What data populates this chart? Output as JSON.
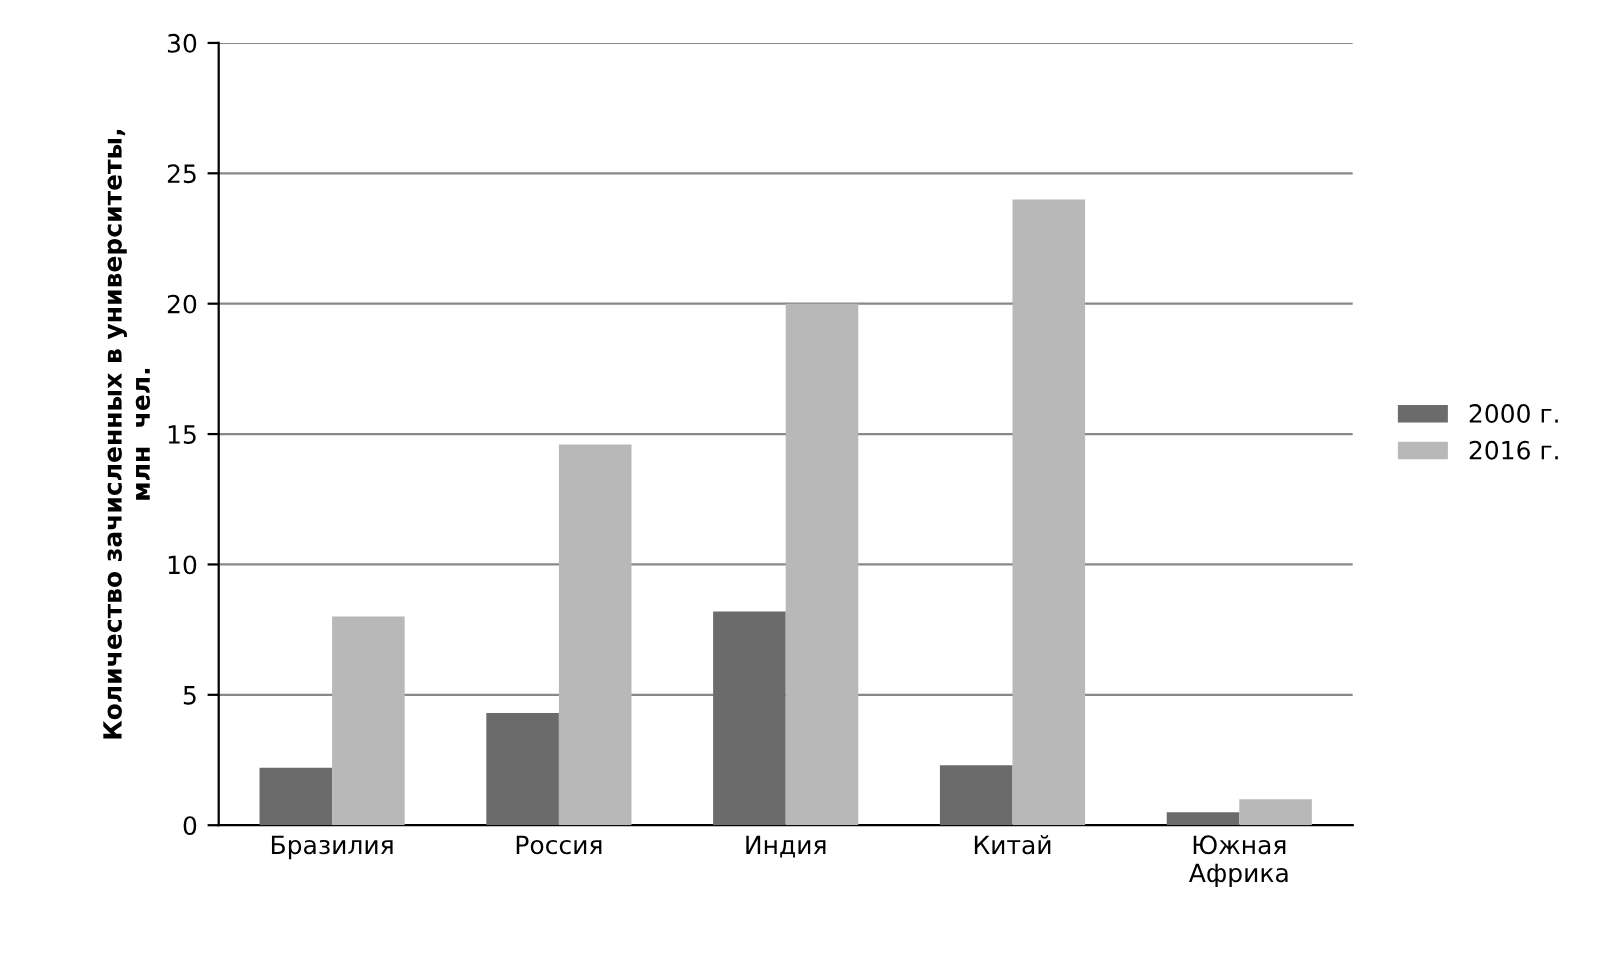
{
  "chart_data": {
    "type": "bar",
    "categories": [
      "Бразилия",
      "Россия",
      "Индия",
      "Китай",
      "Южная Африка"
    ],
    "series": [
      {
        "name": "2000 г.",
        "color": "#6b6b6b",
        "values": [
          2.2,
          4.3,
          8.2,
          2.3,
          0.5
        ]
      },
      {
        "name": "2016 г.",
        "color": "#b8b8b8",
        "values": [
          8.0,
          14.6,
          20.0,
          24.0,
          1.0
        ]
      }
    ],
    "ylabel": "Количество зачисленных в университеты,\nмлн  чел.",
    "ylim": [
      0,
      30
    ],
    "yticks": [
      0,
      5,
      10,
      15,
      20,
      25,
      30
    ],
    "grid": "y",
    "legend": "right"
  }
}
